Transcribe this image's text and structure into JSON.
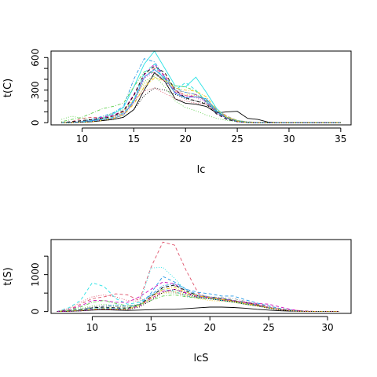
{
  "chart_data": [
    {
      "type": "line",
      "title": "",
      "xlabel": "lc",
      "ylabel": "t(C)",
      "xlim": [
        7,
        36
      ],
      "ylim": [
        -20,
        660
      ],
      "grid": false,
      "line_styles": [
        "solid",
        "dashed",
        "dotted",
        "dashdot"
      ],
      "x_ticks": [
        10,
        15,
        20,
        25,
        30,
        35
      ],
      "y_ticks": [
        0,
        300,
        600
      ],
      "y_tick_labels": [
        "0",
        "300",
        "600"
      ],
      "y_minor_ticks": [
        100,
        200,
        400,
        500
      ],
      "x": [
        8,
        9,
        10,
        11,
        12,
        13,
        14,
        15,
        16,
        17,
        18,
        19,
        20,
        21,
        22,
        23,
        24,
        25,
        26,
        27,
        28,
        29,
        30,
        31,
        32,
        33,
        34,
        35
      ],
      "series": [
        {
          "color": "#000000",
          "style": "solid",
          "values": [
            0,
            0,
            5,
            10,
            20,
            30,
            50,
            120,
            300,
            460,
            380,
            220,
            180,
            170,
            150,
            90,
            100,
            105,
            40,
            30,
            5,
            0,
            0,
            0,
            0,
            0,
            0,
            0
          ]
        },
        {
          "color": "#df536b",
          "style": "dashed",
          "values": [
            0,
            10,
            40,
            50,
            45,
            60,
            100,
            250,
            420,
            500,
            440,
            300,
            250,
            240,
            210,
            120,
            60,
            20,
            5,
            2,
            0,
            0,
            0,
            0,
            0,
            0,
            0,
            0
          ]
        },
        {
          "color": "#61d04f",
          "style": "dotted",
          "values": [
            30,
            60,
            40,
            30,
            50,
            90,
            120,
            200,
            380,
            430,
            330,
            200,
            140,
            110,
            70,
            40,
            20,
            10,
            5,
            0,
            0,
            0,
            0,
            0,
            0,
            0,
            0,
            0
          ]
        },
        {
          "color": "#2297e6",
          "style": "dashdot",
          "values": [
            0,
            5,
            15,
            30,
            60,
            90,
            150,
            400,
            590,
            560,
            420,
            320,
            280,
            260,
            190,
            90,
            40,
            15,
            5,
            0,
            0,
            0,
            0,
            0,
            0,
            0,
            0,
            0
          ]
        },
        {
          "color": "#28e2e5",
          "style": "solid",
          "values": [
            0,
            2,
            10,
            20,
            40,
            80,
            140,
            330,
            540,
            660,
            500,
            340,
            330,
            420,
            280,
            130,
            50,
            20,
            5,
            0,
            0,
            0,
            0,
            0,
            0,
            0,
            0,
            0
          ]
        },
        {
          "color": "#cd0bbc",
          "style": "dashed",
          "values": [
            0,
            5,
            20,
            30,
            50,
            70,
            110,
            260,
            440,
            540,
            420,
            280,
            230,
            260,
            200,
            100,
            40,
            10,
            2,
            0,
            0,
            0,
            0,
            0,
            0,
            0,
            0,
            0
          ]
        },
        {
          "color": "#f5c710",
          "style": "dotted",
          "values": [
            0,
            0,
            10,
            20,
            30,
            50,
            100,
            220,
            360,
            420,
            380,
            290,
            260,
            250,
            220,
            110,
            50,
            20,
            5,
            0,
            0,
            0,
            0,
            0,
            0,
            0,
            0,
            0
          ]
        },
        {
          "color": "#9e9e9e",
          "style": "dashdot",
          "values": [
            0,
            5,
            15,
            20,
            30,
            60,
            80,
            180,
            330,
            440,
            400,
            300,
            280,
            260,
            210,
            110,
            60,
            20,
            10,
            2,
            0,
            0,
            0,
            0,
            0,
            0,
            0,
            0
          ]
        },
        {
          "color": "#000000",
          "style": "dashed",
          "values": [
            0,
            10,
            20,
            30,
            40,
            60,
            110,
            250,
            450,
            520,
            460,
            300,
            230,
            200,
            170,
            80,
            30,
            10,
            0,
            0,
            0,
            0,
            0,
            0,
            0,
            0,
            0,
            0
          ]
        },
        {
          "color": "#df536b",
          "style": "dotted",
          "values": [
            0,
            5,
            10,
            20,
            40,
            60,
            90,
            210,
            290,
            320,
            270,
            220,
            200,
            180,
            170,
            100,
            50,
            20,
            5,
            0,
            0,
            0,
            0,
            0,
            0,
            0,
            0,
            0
          ]
        },
        {
          "color": "#61d04f",
          "style": "dashdot",
          "values": [
            10,
            30,
            50,
            90,
            130,
            150,
            180,
            330,
            470,
            460,
            400,
            340,
            330,
            290,
            200,
            100,
            50,
            20,
            5,
            0,
            0,
            0,
            0,
            0,
            0,
            0,
            0,
            0
          ]
        },
        {
          "color": "#2297e6",
          "style": "solid",
          "values": [
            0,
            0,
            10,
            20,
            30,
            40,
            70,
            200,
            420,
            490,
            410,
            270,
            230,
            240,
            220,
            110,
            40,
            15,
            2,
            0,
            0,
            0,
            0,
            0,
            0,
            0,
            0,
            0
          ]
        },
        {
          "color": "#28e2e5",
          "style": "dashed",
          "values": [
            0,
            2,
            5,
            15,
            30,
            50,
            90,
            210,
            460,
            540,
            380,
            300,
            370,
            300,
            200,
            100,
            40,
            10,
            2,
            0,
            0,
            0,
            0,
            0,
            0,
            0,
            0,
            0
          ]
        },
        {
          "color": "#cd0bbc",
          "style": "dotted",
          "values": [
            0,
            0,
            5,
            15,
            25,
            45,
            80,
            190,
            410,
            470,
            380,
            300,
            250,
            230,
            190,
            90,
            40,
            10,
            2,
            0,
            0,
            0,
            0,
            0,
            0,
            0,
            0,
            0
          ]
        },
        {
          "color": "#f5c710",
          "style": "dashdot",
          "values": [
            0,
            0,
            5,
            10,
            20,
            40,
            70,
            170,
            330,
            410,
            390,
            320,
            300,
            290,
            240,
            120,
            50,
            15,
            2,
            0,
            0,
            0,
            0,
            0,
            0,
            0,
            0,
            0
          ]
        },
        {
          "color": "#000000",
          "style": "dotted",
          "values": [
            0,
            0,
            5,
            10,
            20,
            30,
            50,
            120,
            250,
            320,
            300,
            260,
            220,
            200,
            180,
            100,
            40,
            10,
            2,
            0,
            0,
            0,
            0,
            0,
            0,
            0,
            0,
            0
          ]
        }
      ]
    },
    {
      "type": "line",
      "title": "",
      "xlabel": "lcS",
      "ylabel": "t(S)",
      "xlim": [
        6.5,
        32
      ],
      "ylim": [
        -50,
        1950
      ],
      "grid": false,
      "line_styles": [
        "solid",
        "dashed",
        "dotted",
        "dashdot"
      ],
      "x_ticks": [
        10,
        15,
        20,
        25,
        30
      ],
      "y_ticks": [
        0,
        1000
      ],
      "y_tick_labels": [
        "0",
        "1000"
      ],
      "y_minor_ticks": [
        500,
        1500
      ],
      "x": [
        7,
        8,
        9,
        10,
        11,
        12,
        13,
        14,
        15,
        16,
        17,
        18,
        19,
        20,
        21,
        22,
        23,
        24,
        25,
        26,
        27,
        28,
        29,
        30,
        31
      ],
      "series": [
        {
          "color": "#000000",
          "style": "solid",
          "values": [
            0,
            10,
            20,
            40,
            50,
            40,
            30,
            40,
            50,
            60,
            60,
            80,
            100,
            120,
            120,
            110,
            90,
            60,
            40,
            20,
            10,
            5,
            0,
            0,
            0
          ]
        },
        {
          "color": "#df536b",
          "style": "dashed",
          "values": [
            0,
            50,
            200,
            350,
            400,
            480,
            450,
            300,
            1200,
            1880,
            1800,
            1100,
            500,
            350,
            300,
            280,
            250,
            200,
            150,
            80,
            40,
            20,
            5,
            0,
            0
          ]
        },
        {
          "color": "#61d04f",
          "style": "dotted",
          "values": [
            0,
            30,
            80,
            150,
            200,
            150,
            100,
            200,
            350,
            500,
            500,
            450,
            400,
            380,
            320,
            260,
            200,
            150,
            100,
            50,
            20,
            5,
            0,
            0,
            0
          ]
        },
        {
          "color": "#2297e6",
          "style": "dashdot",
          "values": [
            0,
            20,
            60,
            100,
            150,
            180,
            150,
            200,
            450,
            700,
            750,
            600,
            450,
            400,
            350,
            300,
            250,
            180,
            100,
            50,
            20,
            5,
            0,
            0,
            0
          ]
        },
        {
          "color": "#28e2e5",
          "style": "dashed",
          "values": [
            0,
            100,
            300,
            780,
            680,
            350,
            200,
            250,
            450,
            600,
            550,
            420,
            380,
            350,
            300,
            250,
            200,
            150,
            100,
            50,
            20,
            5,
            0,
            0,
            0
          ]
        },
        {
          "color": "#cd0bbc",
          "style": "dashed",
          "values": [
            0,
            50,
            150,
            300,
            300,
            250,
            250,
            400,
            600,
            800,
            750,
            500,
            400,
            380,
            320,
            280,
            250,
            220,
            200,
            120,
            50,
            10,
            0,
            0,
            0
          ]
        },
        {
          "color": "#f5c710",
          "style": "dotted",
          "values": [
            0,
            10,
            30,
            60,
            80,
            70,
            60,
            150,
            350,
            500,
            550,
            450,
            350,
            300,
            280,
            250,
            200,
            150,
            100,
            50,
            20,
            5,
            0,
            0,
            0
          ]
        },
        {
          "color": "#9e9e9e",
          "style": "dashdot",
          "values": [
            0,
            20,
            60,
            120,
            150,
            130,
            120,
            200,
            400,
            650,
            700,
            550,
            450,
            400,
            380,
            350,
            280,
            200,
            120,
            60,
            20,
            5,
            0,
            0,
            0
          ]
        },
        {
          "color": "#000000",
          "style": "dashed",
          "values": [
            0,
            20,
            50,
            100,
            120,
            100,
            90,
            180,
            400,
            650,
            720,
            560,
            420,
            380,
            350,
            300,
            240,
            180,
            100,
            50,
            20,
            5,
            0,
            0,
            0
          ]
        },
        {
          "color": "#df536b",
          "style": "dotted",
          "values": [
            0,
            80,
            250,
            400,
            450,
            400,
            300,
            280,
            420,
            560,
            520,
            420,
            380,
            360,
            320,
            280,
            240,
            190,
            120,
            60,
            20,
            5,
            0,
            0,
            0
          ]
        },
        {
          "color": "#61d04f",
          "style": "dashdot",
          "values": [
            0,
            40,
            120,
            250,
            300,
            220,
            150,
            180,
            300,
            420,
            450,
            400,
            360,
            350,
            330,
            280,
            220,
            160,
            100,
            50,
            20,
            5,
            0,
            0,
            0
          ]
        },
        {
          "color": "#2297e6",
          "style": "dashed",
          "values": [
            0,
            10,
            30,
            70,
            90,
            80,
            70,
            150,
            500,
            950,
            800,
            600,
            520,
            480,
            420,
            420,
            320,
            230,
            150,
            80,
            30,
            10,
            0,
            0,
            0
          ]
        },
        {
          "color": "#28e2e5",
          "style": "dotted",
          "values": [
            0,
            10,
            40,
            80,
            100,
            90,
            80,
            180,
            1180,
            1200,
            900,
            550,
            400,
            350,
            300,
            260,
            220,
            170,
            110,
            50,
            20,
            5,
            0,
            0,
            0
          ]
        },
        {
          "color": "#cd0bbc",
          "style": "dashed",
          "values": [
            0,
            5,
            20,
            50,
            70,
            60,
            60,
            150,
            350,
            550,
            600,
            500,
            420,
            380,
            340,
            290,
            230,
            170,
            110,
            50,
            20,
            5,
            0,
            0,
            0
          ]
        },
        {
          "color": "#f5c710",
          "style": "dashdot",
          "values": [
            0,
            10,
            30,
            60,
            80,
            70,
            70,
            160,
            380,
            600,
            650,
            520,
            420,
            380,
            330,
            280,
            220,
            160,
            100,
            50,
            20,
            5,
            0,
            0,
            0
          ]
        },
        {
          "color": "#000000",
          "style": "dotted",
          "values": [
            0,
            5,
            15,
            40,
            60,
            50,
            50,
            120,
            300,
            520,
            600,
            480,
            380,
            340,
            300,
            260,
            200,
            150,
            90,
            40,
            15,
            5,
            0,
            0,
            0
          ]
        }
      ]
    }
  ]
}
